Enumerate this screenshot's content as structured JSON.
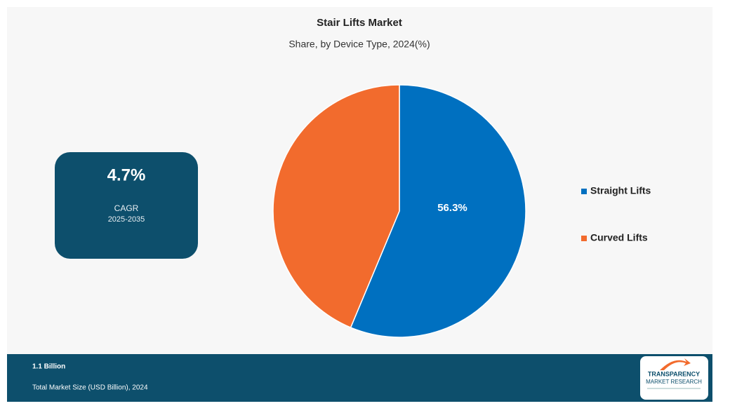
{
  "chart_data": {
    "type": "pie",
    "title": "Stair Lifts Market",
    "subtitle": "Share, by Device Type, 2024(%)",
    "categories": [
      "Straight Lifts",
      "Curved Lifts"
    ],
    "values": [
      56.3,
      43.7
    ],
    "value_labels": [
      "56.3%",
      null
    ],
    "colors": [
      "#0070c0",
      "#f26b2d"
    ],
    "legend": "right"
  },
  "cagr": {
    "value": "4.7%",
    "label": "CAGR",
    "period": "2025-2035"
  },
  "market_size": {
    "value": "1.1 Billion",
    "label": "Total Market Size (USD Billion), 2024"
  },
  "logo": {
    "line1": "TRANSPARENCY",
    "line2": "MARKET RESEARCH"
  }
}
